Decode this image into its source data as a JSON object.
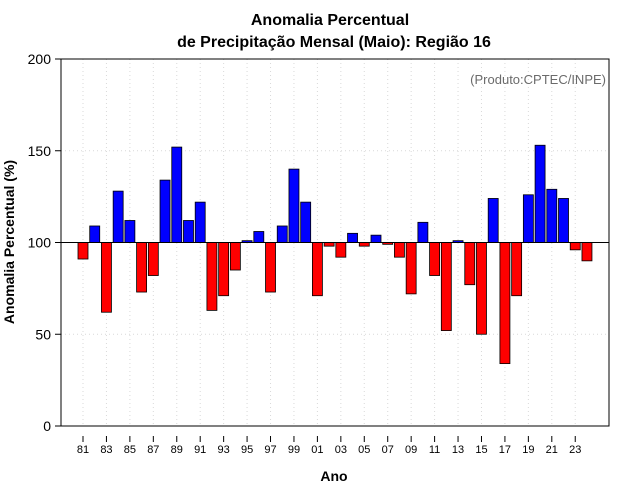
{
  "chart_data": {
    "type": "bar",
    "title_line1": "Anomalia Percentual",
    "title_line2": "de Precipitação Mensal (Maio): Região 16",
    "xlabel": "Ano",
    "ylabel": "Anomalia Percentual (%)",
    "credit": "(Produto:CPTEC/INPE)",
    "ylim": [
      0,
      200
    ],
    "yticks": [
      0,
      50,
      100,
      150,
      200
    ],
    "baseline": 100,
    "colors": {
      "above": "#0000ff",
      "below": "#ff0000",
      "baseline": "#000000",
      "grid": "#d9d9d9"
    },
    "categories": [
      "1981",
      "1982",
      "1983",
      "1984",
      "1985",
      "1986",
      "1987",
      "1988",
      "1989",
      "1990",
      "1991",
      "1992",
      "1993",
      "1994",
      "1995",
      "1996",
      "1997",
      "1998",
      "1999",
      "2000",
      "2001",
      "2002",
      "2003",
      "2004",
      "2005",
      "2006",
      "2007",
      "2008",
      "2009",
      "2010",
      "2011",
      "2012",
      "2013",
      "2014",
      "2015",
      "2016",
      "2017",
      "2018",
      "2019",
      "2020",
      "2021",
      "2022",
      "2023",
      "2024"
    ],
    "values": [
      91,
      109,
      62,
      128,
      112,
      73,
      82,
      134,
      152,
      112,
      122,
      63,
      71,
      85,
      101,
      106,
      73,
      109,
      140,
      122,
      71,
      98,
      92,
      105,
      98,
      104,
      99,
      92,
      72,
      111,
      82,
      52,
      101,
      77,
      50,
      124,
      34,
      71,
      126,
      153,
      129,
      124,
      96,
      90
    ],
    "xtick_labels": [
      {
        "index": 0,
        "label": "81"
      },
      {
        "index": 2,
        "label": "83"
      },
      {
        "index": 4,
        "label": "85"
      },
      {
        "index": 6,
        "label": "87"
      },
      {
        "index": 8,
        "label": "89"
      },
      {
        "index": 10,
        "label": "91"
      },
      {
        "index": 12,
        "label": "93"
      },
      {
        "index": 14,
        "label": "95"
      },
      {
        "index": 16,
        "label": "97"
      },
      {
        "index": 18,
        "label": "99"
      },
      {
        "index": 20,
        "label": "01"
      },
      {
        "index": 22,
        "label": "03"
      },
      {
        "index": 24,
        "label": "05"
      },
      {
        "index": 26,
        "label": "07"
      },
      {
        "index": 28,
        "label": "09"
      },
      {
        "index": 30,
        "label": "11"
      },
      {
        "index": 32,
        "label": "13"
      },
      {
        "index": 34,
        "label": "15"
      },
      {
        "index": 36,
        "label": "17"
      },
      {
        "index": 38,
        "label": "19"
      },
      {
        "index": 40,
        "label": "21"
      },
      {
        "index": 42,
        "label": "23"
      }
    ]
  }
}
